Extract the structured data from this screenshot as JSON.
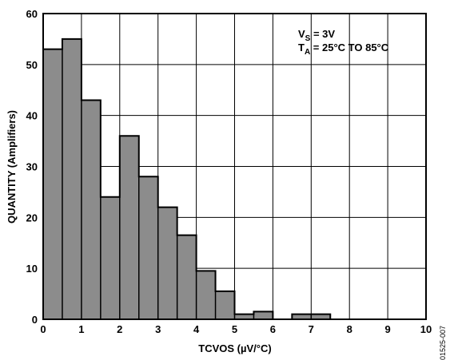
{
  "chart_data": {
    "type": "bar",
    "subtype": "histogram",
    "bin_edges": [
      0,
      0.5,
      1,
      1.5,
      2,
      2.5,
      3,
      3.5,
      4,
      4.5,
      5,
      5.5,
      6,
      6.5,
      7,
      7.5,
      8,
      8.5,
      9,
      9.5,
      10
    ],
    "values": [
      53,
      55,
      43,
      24,
      36,
      28,
      22,
      16.5,
      9.5,
      5.5,
      1,
      1.5,
      0,
      1,
      1,
      0,
      0,
      0,
      0,
      0
    ],
    "xlabel": "TCVOS (µV/°C)",
    "ylabel": "QUANTITY (Amplifiers)",
    "xlim": [
      0,
      10
    ],
    "ylim": [
      0,
      60
    ],
    "xticks": [
      "0",
      "1",
      "2",
      "3",
      "4",
      "5",
      "6",
      "7",
      "8",
      "9",
      "10"
    ],
    "yticks": [
      "0",
      "10",
      "20",
      "30",
      "40",
      "50",
      "60"
    ],
    "grid": true,
    "bar_color": "#8c8c8c",
    "annotations": {
      "vs_label": "V",
      "vs_sub": "S",
      "vs_value": " = 3V",
      "ta_label": "T",
      "ta_sub": "A",
      "ta_value": " = 25°C TO 85°C"
    },
    "figure_id": "01525-007"
  }
}
